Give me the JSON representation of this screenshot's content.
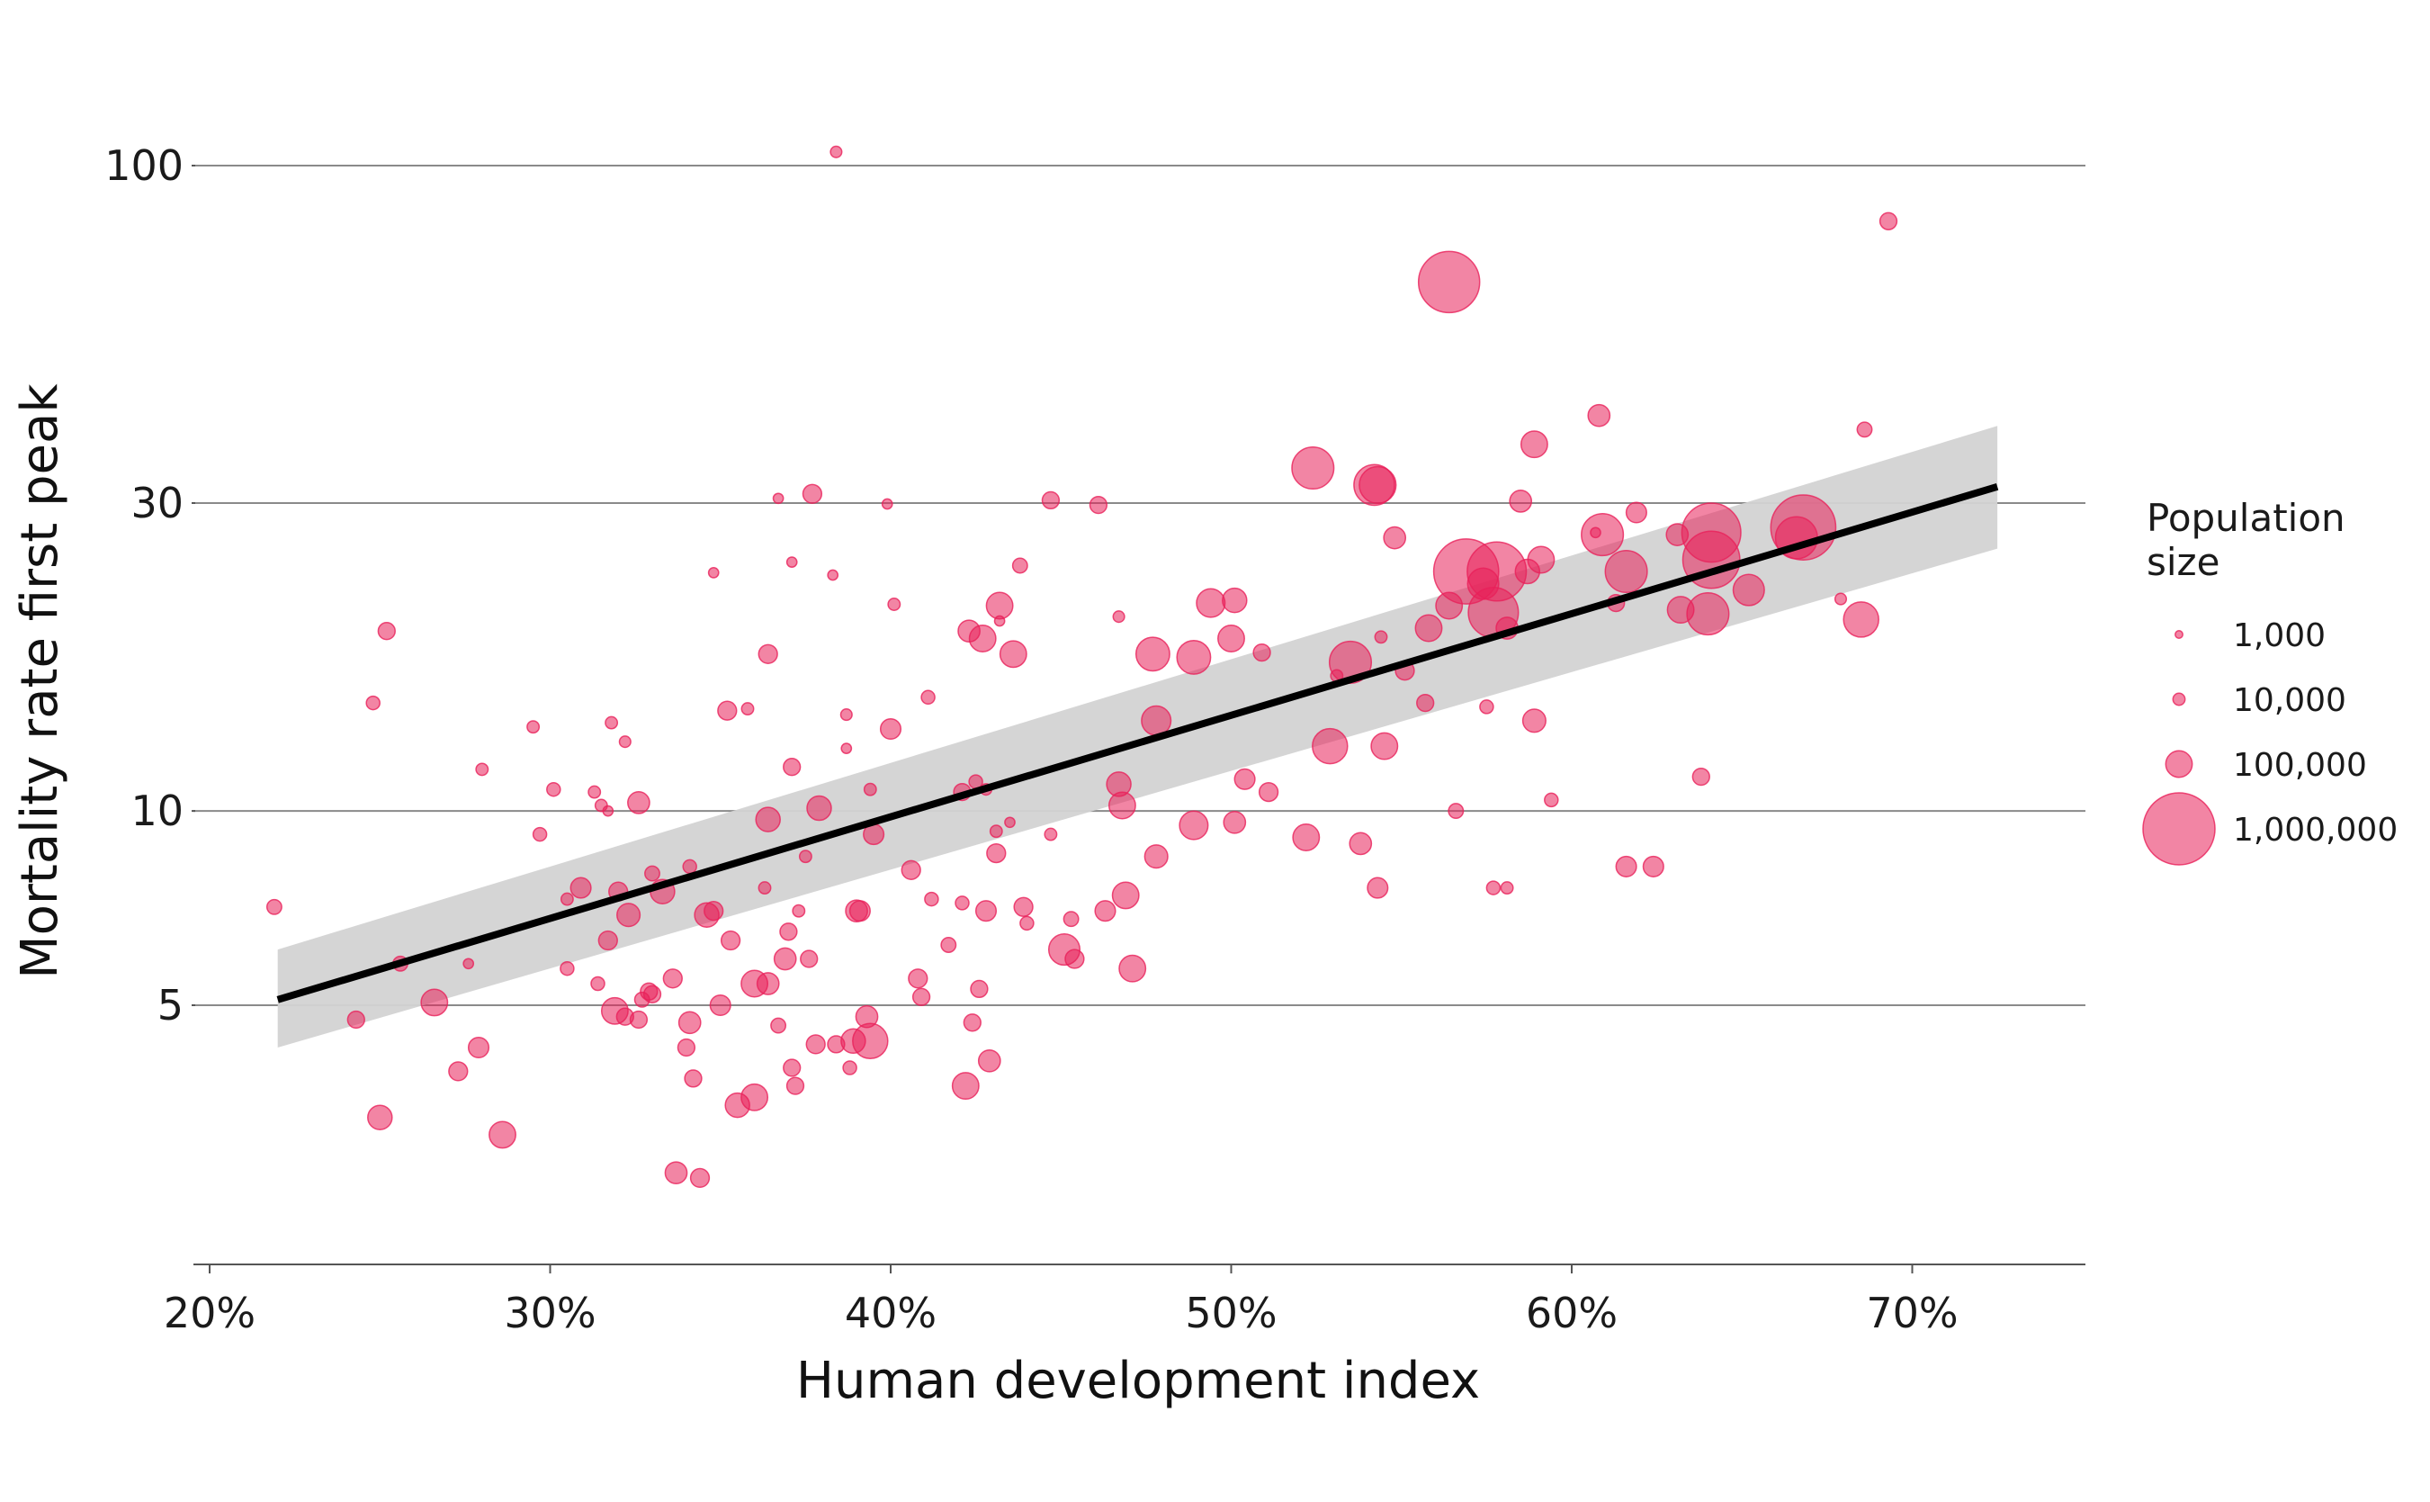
{
  "chart_data": {
    "type": "scatter",
    "title": "",
    "xlabel": "Human development index",
    "ylabel": "Mortality rate first peak",
    "x_scale": "linear",
    "y_scale": "log",
    "xlim": [
      0.195,
      0.75
    ],
    "ylim": [
      2.0,
      130
    ],
    "x_ticks": [
      {
        "value": 0.2,
        "label": "20%"
      },
      {
        "value": 0.3,
        "label": "30%"
      },
      {
        "value": 0.4,
        "label": "40%"
      },
      {
        "value": 0.5,
        "label": "50%"
      },
      {
        "value": 0.6,
        "label": "60%"
      },
      {
        "value": 0.7,
        "label": "70%"
      }
    ],
    "y_ticks": [
      {
        "value": 5,
        "label": "5"
      },
      {
        "value": 10,
        "label": "10"
      },
      {
        "value": 30,
        "label": "30"
      },
      {
        "value": 100,
        "label": "100"
      }
    ],
    "grid": "horizontal",
    "point_color": "#e8215a",
    "point_opacity": 0.55,
    "trend_line": {
      "x": [
        0.22,
        0.725
      ],
      "y": [
        5.1,
        31.8
      ],
      "color": "#000000"
    },
    "confidence_band": {
      "x": [
        0.22,
        0.725
      ],
      "lower": [
        4.3,
        25.5
      ],
      "upper": [
        6.1,
        39.5
      ],
      "color": "#d3d3d3"
    },
    "legend": {
      "title": [
        "Population",
        "size"
      ],
      "placement": "right",
      "entries": [
        {
          "label": "1,000",
          "population": 1000
        },
        {
          "label": "10,000",
          "population": 10000
        },
        {
          "label": "100,000",
          "population": 100000
        },
        {
          "label": "1,000,000",
          "population": 1000000
        }
      ]
    },
    "points": [
      [
        0.384,
        105,
        8000
      ],
      [
        0.693,
        82,
        30000
      ],
      [
        0.564,
        66,
        700000
      ],
      [
        0.686,
        39,
        20000
      ],
      [
        0.608,
        41,
        60000
      ],
      [
        0.589,
        37,
        100000
      ],
      [
        0.524,
        34,
        300000
      ],
      [
        0.542,
        32,
        280000
      ],
      [
        0.543,
        32,
        220000
      ],
      [
        0.377,
        31,
        40000
      ],
      [
        0.367,
        30.5,
        5000
      ],
      [
        0.447,
        30.3,
        30000
      ],
      [
        0.461,
        29.8,
        30000
      ],
      [
        0.399,
        29.9,
        5000
      ],
      [
        0.585,
        30.2,
        60000
      ],
      [
        0.619,
        29,
        50000
      ],
      [
        0.641,
        27,
        650000
      ],
      [
        0.668,
        27.5,
        800000
      ],
      [
        0.548,
        26.5,
        60000
      ],
      [
        0.609,
        26.8,
        300000
      ],
      [
        0.631,
        26.8,
        60000
      ],
      [
        0.666,
        26.5,
        300000
      ],
      [
        0.607,
        27,
        5000
      ],
      [
        0.591,
        24.5,
        100000
      ],
      [
        0.569,
        23.5,
        800000
      ],
      [
        0.578,
        23.5,
        650000
      ],
      [
        0.587,
        23.5,
        80000
      ],
      [
        0.616,
        23.5,
        300000
      ],
      [
        0.641,
        24.5,
        600000
      ],
      [
        0.438,
        24,
        20000
      ],
      [
        0.371,
        24.3,
        5000
      ],
      [
        0.348,
        23.4,
        5000
      ],
      [
        0.383,
        23.2,
        5000
      ],
      [
        0.574,
        22.5,
        150000
      ],
      [
        0.652,
        22,
        150000
      ],
      [
        0.679,
        21.3,
        8000
      ],
      [
        0.494,
        21,
        120000
      ],
      [
        0.501,
        21.2,
        80000
      ],
      [
        0.432,
        20.8,
        100000
      ],
      [
        0.564,
        20.8,
        100000
      ],
      [
        0.577,
        20.3,
        450000
      ],
      [
        0.613,
        21,
        30000
      ],
      [
        0.401,
        20.9,
        10000
      ],
      [
        0.467,
        20,
        8000
      ],
      [
        0.432,
        19.7,
        5000
      ],
      [
        0.581,
        19.2,
        60000
      ],
      [
        0.558,
        19.2,
        100000
      ],
      [
        0.632,
        20.5,
        100000
      ],
      [
        0.64,
        20.2,
        300000
      ],
      [
        0.685,
        19.8,
        200000
      ],
      [
        0.252,
        19,
        30000
      ],
      [
        0.423,
        19,
        60000
      ],
      [
        0.427,
        18.5,
        100000
      ],
      [
        0.5,
        18.5,
        100000
      ],
      [
        0.544,
        18.6,
        10000
      ],
      [
        0.436,
        17.5,
        100000
      ],
      [
        0.364,
        17.5,
        40000
      ],
      [
        0.477,
        17.5,
        180000
      ],
      [
        0.489,
        17.3,
        180000
      ],
      [
        0.509,
        17.6,
        30000
      ],
      [
        0.535,
        17,
        300000
      ],
      [
        0.551,
        16.5,
        40000
      ],
      [
        0.531,
        16.2,
        10000
      ],
      [
        0.248,
        14.7,
        15000
      ],
      [
        0.411,
        15,
        15000
      ],
      [
        0.352,
        14.3,
        40000
      ],
      [
        0.358,
        14.4,
        10000
      ],
      [
        0.557,
        14.7,
        30000
      ],
      [
        0.575,
        14.5,
        15000
      ],
      [
        0.387,
        14.1,
        8000
      ],
      [
        0.478,
        13.8,
        130000
      ],
      [
        0.589,
        13.8,
        70000
      ],
      [
        0.295,
        13.5,
        10000
      ],
      [
        0.318,
        13.7,
        10000
      ],
      [
        0.4,
        13.4,
        50000
      ],
      [
        0.322,
        12.8,
        8000
      ],
      [
        0.529,
        12.6,
        200000
      ],
      [
        0.545,
        12.6,
        100000
      ],
      [
        0.387,
        12.5,
        5000
      ],
      [
        0.28,
        11.6,
        10000
      ],
      [
        0.371,
        11.7,
        30000
      ],
      [
        0.638,
        11.3,
        30000
      ],
      [
        0.504,
        11.2,
        50000
      ],
      [
        0.467,
        11,
        80000
      ],
      [
        0.421,
        10.7,
        30000
      ],
      [
        0.425,
        11.1,
        15000
      ],
      [
        0.428,
        10.8,
        8000
      ],
      [
        0.511,
        10.7,
        40000
      ],
      [
        0.301,
        10.8,
        15000
      ],
      [
        0.313,
        10.7,
        10000
      ],
      [
        0.394,
        10.8,
        10000
      ],
      [
        0.594,
        10.4,
        15000
      ],
      [
        0.326,
        10.3,
        60000
      ],
      [
        0.315,
        10.2,
        10000
      ],
      [
        0.317,
        10,
        5000
      ],
      [
        0.379,
        10.1,
        80000
      ],
      [
        0.468,
        10.2,
        100000
      ],
      [
        0.566,
        10,
        20000
      ],
      [
        0.435,
        9.6,
        5000
      ],
      [
        0.364,
        9.7,
        80000
      ],
      [
        0.501,
        9.6,
        60000
      ],
      [
        0.431,
        9.3,
        10000
      ],
      [
        0.489,
        9.5,
        120000
      ],
      [
        0.297,
        9.2,
        15000
      ],
      [
        0.447,
        9.2,
        10000
      ],
      [
        0.395,
        9.2,
        50000
      ],
      [
        0.522,
        9.1,
        100000
      ],
      [
        0.538,
        8.9,
        60000
      ],
      [
        0.431,
        8.6,
        40000
      ],
      [
        0.375,
        8.5,
        10000
      ],
      [
        0.478,
        8.5,
        70000
      ],
      [
        0.406,
        8.1,
        40000
      ],
      [
        0.616,
        8.2,
        50000
      ],
      [
        0.624,
        8.2,
        50000
      ],
      [
        0.33,
        8,
        20000
      ],
      [
        0.341,
        8.2,
        15000
      ],
      [
        0.309,
        7.6,
        50000
      ],
      [
        0.32,
        7.5,
        40000
      ],
      [
        0.333,
        7.5,
        80000
      ],
      [
        0.363,
        7.6,
        10000
      ],
      [
        0.543,
        7.6,
        50000
      ],
      [
        0.469,
        7.4,
        100000
      ],
      [
        0.577,
        7.6,
        15000
      ],
      [
        0.581,
        7.6,
        10000
      ],
      [
        0.305,
        7.3,
        10000
      ],
      [
        0.412,
        7.3,
        15000
      ],
      [
        0.421,
        7.2,
        15000
      ],
      [
        0.439,
        7.1,
        40000
      ],
      [
        0.219,
        7.1,
        20000
      ],
      [
        0.346,
        6.9,
        80000
      ],
      [
        0.348,
        7,
        40000
      ],
      [
        0.39,
        7,
        60000
      ],
      [
        0.391,
        7,
        50000
      ],
      [
        0.373,
        7,
        10000
      ],
      [
        0.323,
        6.9,
        70000
      ],
      [
        0.463,
        7,
        50000
      ],
      [
        0.453,
        6.8,
        20000
      ],
      [
        0.428,
        7,
        50000
      ],
      [
        0.37,
        6.5,
        30000
      ],
      [
        0.44,
        6.7,
        15000
      ],
      [
        0.317,
        6.3,
        40000
      ],
      [
        0.353,
        6.3,
        40000
      ],
      [
        0.417,
        6.2,
        20000
      ],
      [
        0.451,
        6.1,
        150000
      ],
      [
        0.454,
        5.9,
        40000
      ],
      [
        0.256,
        5.8,
        20000
      ],
      [
        0.276,
        5.8,
        5000
      ],
      [
        0.369,
        5.9,
        60000
      ],
      [
        0.376,
        5.9,
        30000
      ],
      [
        0.305,
        5.7,
        15000
      ],
      [
        0.336,
        5.5,
        40000
      ],
      [
        0.408,
        5.5,
        40000
      ],
      [
        0.471,
        5.7,
        100000
      ],
      [
        0.314,
        5.4,
        15000
      ],
      [
        0.36,
        5.4,
        100000
      ],
      [
        0.364,
        5.4,
        60000
      ],
      [
        0.426,
        5.3,
        30000
      ],
      [
        0.33,
        5.2,
        30000
      ],
      [
        0.329,
        5.25,
        30000
      ],
      [
        0.327,
        5.1,
        20000
      ],
      [
        0.35,
        5,
        50000
      ],
      [
        0.266,
        5.05,
        100000
      ],
      [
        0.319,
        4.9,
        100000
      ],
      [
        0.322,
        4.8,
        30000
      ],
      [
        0.409,
        5.15,
        30000
      ],
      [
        0.326,
        4.75,
        30000
      ],
      [
        0.243,
        4.75,
        30000
      ],
      [
        0.341,
        4.7,
        60000
      ],
      [
        0.367,
        4.65,
        20000
      ],
      [
        0.393,
        4.8,
        60000
      ],
      [
        0.424,
        4.7,
        30000
      ],
      [
        0.394,
        4.4,
        200000
      ],
      [
        0.389,
        4.4,
        80000
      ],
      [
        0.34,
        4.3,
        30000
      ],
      [
        0.378,
        4.35,
        40000
      ],
      [
        0.384,
        4.35,
        30000
      ],
      [
        0.279,
        4.3,
        50000
      ],
      [
        0.429,
        4.1,
        60000
      ],
      [
        0.371,
        4.0,
        30000
      ],
      [
        0.388,
        4.0,
        15000
      ],
      [
        0.273,
        3.95,
        40000
      ],
      [
        0.342,
        3.85,
        30000
      ],
      [
        0.372,
        3.75,
        30000
      ],
      [
        0.422,
        3.75,
        100000
      ],
      [
        0.36,
        3.6,
        100000
      ],
      [
        0.355,
        3.5,
        80000
      ],
      [
        0.25,
        3.35,
        80000
      ],
      [
        0.286,
        3.15,
        100000
      ],
      [
        0.337,
        2.75,
        60000
      ],
      [
        0.344,
        2.7,
        40000
      ]
    ]
  }
}
